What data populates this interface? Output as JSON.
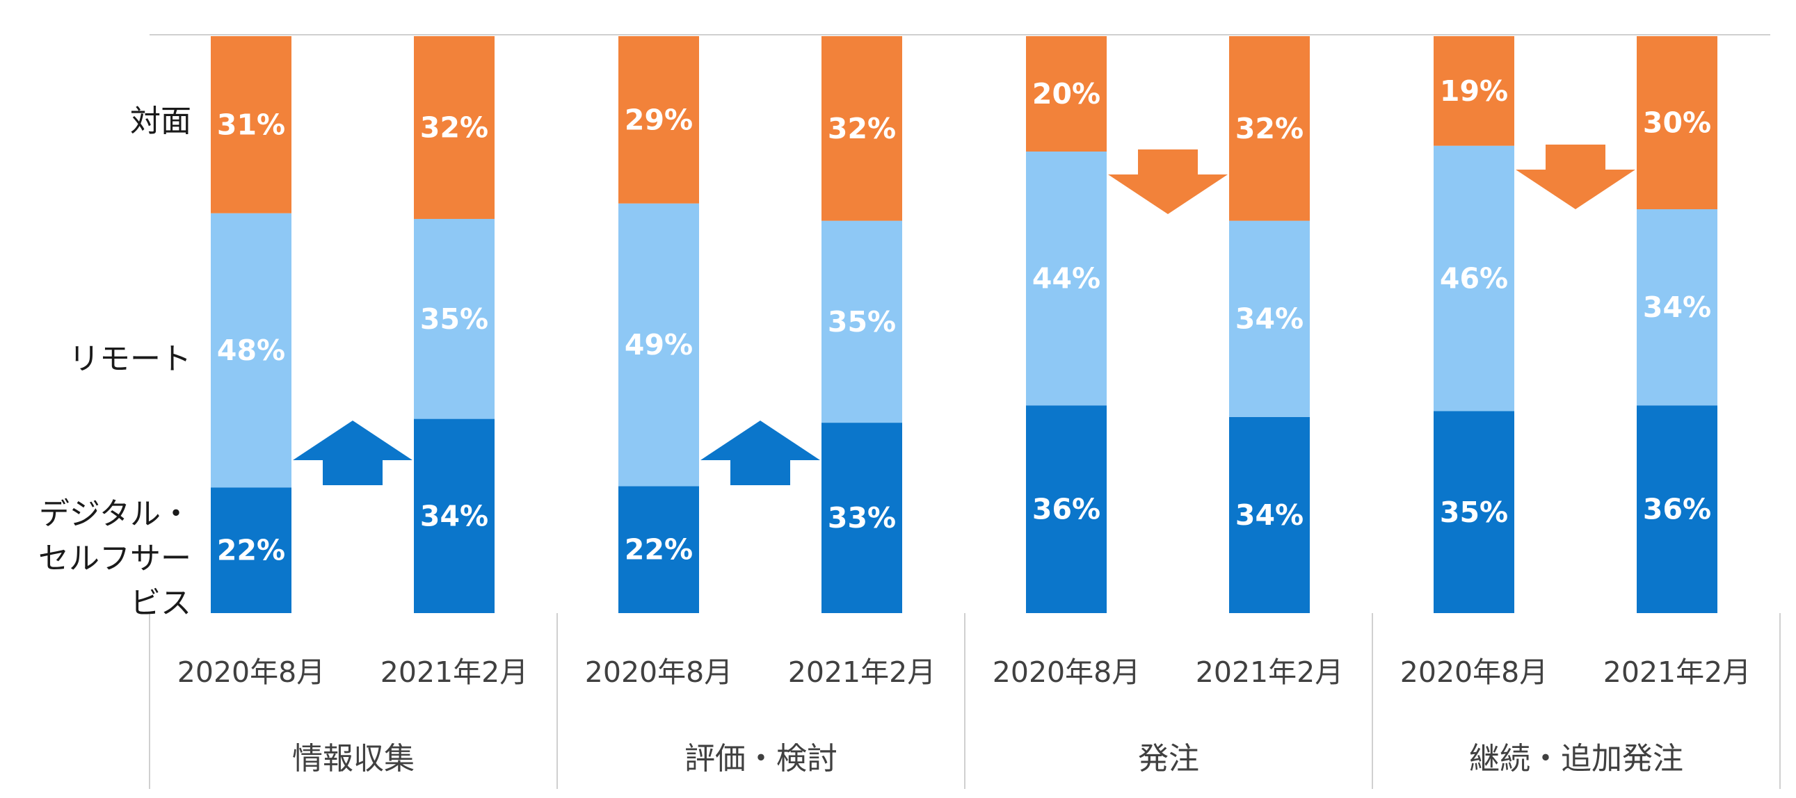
{
  "chart_data": {
    "type": "bar",
    "stacked": true,
    "normalized": true,
    "ylim": [
      0,
      1
    ],
    "colors": {
      "対面": "#F2823A",
      "リモート": "#8EC8F5",
      "デジタル・セルフサービス": "#0B76CB",
      "axis": "#d0d0d0",
      "label_text": "#ffffff",
      "arrow_blue": "#0B76CB",
      "arrow_orange": "#F2823A"
    },
    "series_labels": [
      {
        "lines": [
          "対面"
        ]
      },
      {
        "lines": [
          "リモート"
        ]
      },
      {
        "lines": [
          "デジタル・",
          "セルフサービス"
        ]
      }
    ],
    "groups": [
      {
        "category": "情報収集",
        "arrow": "up",
        "bars": [
          {
            "period": "2020年8月",
            "digital": 22,
            "remote": 48,
            "face": 31
          },
          {
            "period": "2021年2月",
            "digital": 34,
            "remote": 35,
            "face": 32
          }
        ]
      },
      {
        "category": "評価・検討",
        "arrow": "up",
        "bars": [
          {
            "period": "2020年8月",
            "digital": 22,
            "remote": 49,
            "face": 29
          },
          {
            "period": "2021年2月",
            "digital": 33,
            "remote": 35,
            "face": 32
          }
        ]
      },
      {
        "category": "発注",
        "arrow": "down",
        "bars": [
          {
            "period": "2020年8月",
            "digital": 36,
            "remote": 44,
            "face": 20
          },
          {
            "period": "2021年2月",
            "digital": 34,
            "remote": 34,
            "face": 32
          }
        ]
      },
      {
        "category": "継続・追加発注",
        "arrow": "down",
        "bars": [
          {
            "period": "2020年8月",
            "digital": 35,
            "remote": 46,
            "face": 19
          },
          {
            "period": "2021年2月",
            "digital": 36,
            "remote": 34,
            "face": 30
          }
        ]
      }
    ]
  }
}
